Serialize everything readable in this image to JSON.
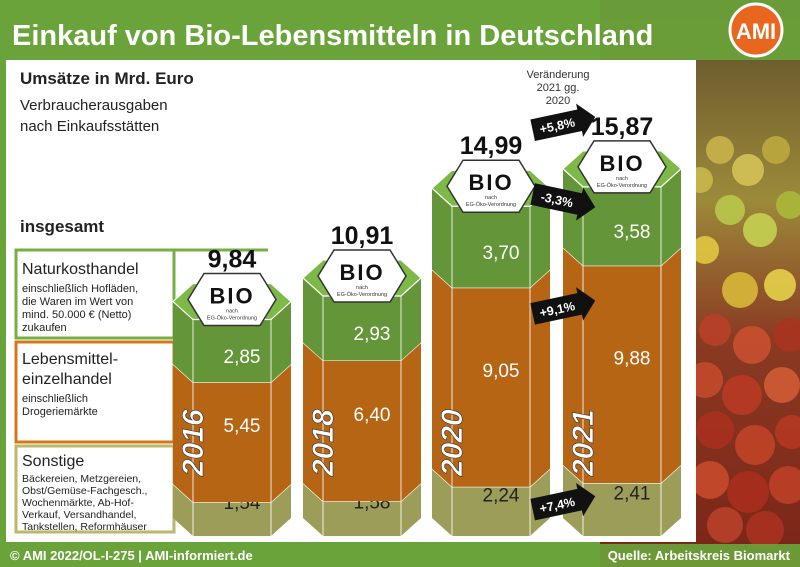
{
  "title": "Einkauf von Bio-Lebensmitteln in Deutschland",
  "logo": "AMI",
  "subtitle": "Umsätze in Mrd. Euro",
  "subtitle2_line1": "Verbraucherausgaben",
  "subtitle2_line2": "nach Einkaufsstätten",
  "total_label": "insgesamt",
  "change_header": [
    "Veränderung",
    "2021 gg.",
    "2020"
  ],
  "legend": [
    {
      "title": [
        "Naturkosthandel"
      ],
      "desc": [
        "einschließlich Hofläden,",
        "die Waren im Wert von",
        "mind. 50.000 € (Netto)",
        "zukaufen"
      ]
    },
    {
      "title": [
        "Lebensmittel-",
        "einzelhandel"
      ],
      "desc": [
        "einschließlich",
        "Drogeriemärkte"
      ]
    },
    {
      "title": [
        "Sonstige"
      ],
      "desc": [
        "Bäckereien, Metzgereien,",
        "Obst/Gemüse-Fachgesch.,",
        "Wochenmärkte, Ab-Hof-",
        "Verkauf, Versandhandel,",
        "Tankstellen, Reformhäuser"
      ]
    }
  ],
  "bio_seal": {
    "word": "BIO",
    "line1": "nach",
    "line2": "EG-Öko-Verordnung"
  },
  "footer_left": "© AMI 2022/OL-I-275 | AMI-informiert.de",
  "footer_right": "Quelle: Arbeitskreis Biomarkt",
  "colors": {
    "naturkost": "#76b043",
    "lebensmittel": "#d67718",
    "sonstige": "#b9b96a",
    "header_green": "#6aa33a"
  },
  "chart_data": {
    "type": "bar",
    "stacked": true,
    "unit": "Mrd. Euro",
    "categories": [
      "2016",
      "2018",
      "2020",
      "2021"
    ],
    "series": [
      {
        "name": "Sonstige",
        "values": [
          1.54,
          1.58,
          2.24,
          2.41
        ]
      },
      {
        "name": "Lebensmitteleinzelhandel",
        "values": [
          5.45,
          6.4,
          9.05,
          9.88
        ]
      },
      {
        "name": "Naturkosthandel",
        "values": [
          2.85,
          2.93,
          3.7,
          3.58
        ]
      }
    ],
    "value_labels": [
      [
        "1,54",
        "1,58",
        "2,24",
        "2,41"
      ],
      [
        "5,45",
        "6,40",
        "9,05",
        "9,88"
      ],
      [
        "2,85",
        "2,93",
        "3,70",
        "3,58"
      ]
    ],
    "totals": [
      9.84,
      10.91,
      14.99,
      15.87
    ],
    "total_labels": [
      "9,84",
      "10,91",
      "14,99",
      "15,87"
    ],
    "changes_2021_vs_2020": [
      {
        "series": "Sonstige",
        "label": "+7,4%"
      },
      {
        "series": "Lebensmitteleinzelhandel",
        "label": "+9,1%"
      },
      {
        "series": "Naturkosthandel",
        "label": "-3,3%"
      },
      {
        "series": "insgesamt",
        "label": "+5,8%"
      }
    ]
  }
}
